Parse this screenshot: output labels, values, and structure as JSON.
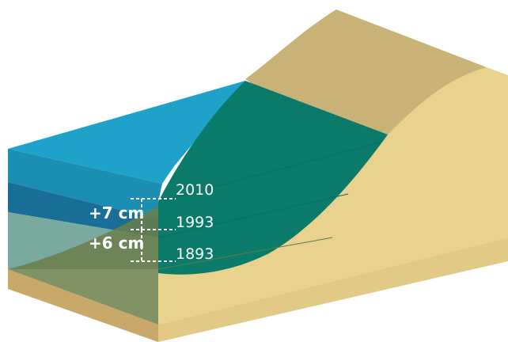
{
  "annotations": {
    "years": [
      "2010",
      "1993",
      "1893"
    ],
    "differences": [
      "+7 cm",
      "+6 cm"
    ]
  },
  "colors": {
    "ground_top": "#c8b277",
    "ground_side": "#e8d28e",
    "ground_front": "#c9a96a",
    "water_top": "#1ea2c9",
    "water_front_2010": "#1a8fb3",
    "water_front_1993": "#186e97",
    "water_front_1893": "#7aa99f",
    "water_over_land": "#0a7a6a",
    "label_text": "#ffffff"
  }
}
